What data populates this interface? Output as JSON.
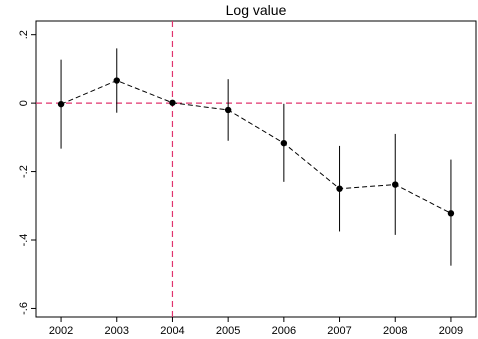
{
  "chart_data": {
    "type": "scatter",
    "title": "Log value",
    "xlabel": "",
    "ylabel": "",
    "x": [
      2002,
      2003,
      2004,
      2005,
      2006,
      2007,
      2008,
      2009
    ],
    "series": [
      {
        "values": [
          -0.003,
          0.066,
          0.001,
          -0.02,
          -0.117,
          -0.25,
          -0.238,
          -0.322
        ],
        "ci_low": [
          -0.133,
          -0.028,
          0.001,
          -0.11,
          -0.23,
          -0.375,
          -0.385,
          -0.475
        ],
        "ci_high": [
          0.127,
          0.16,
          0.001,
          0.07,
          -0.002,
          -0.125,
          -0.09,
          -0.165
        ],
        "marker_color": "#000000",
        "line_style": "dashed"
      }
    ],
    "xticks": [
      "2002",
      "2003",
      "2004",
      "2005",
      "2006",
      "2007",
      "2008",
      "2009"
    ],
    "yticks": [
      0.2,
      0,
      -0.2,
      -0.4,
      -0.6
    ],
    "ytick_labels": [
      ".2",
      "0",
      "-.2",
      "-.4",
      "-.6"
    ],
    "xlim": [
      2001.55,
      2009.45
    ],
    "ylim": [
      -0.625,
      0.24
    ],
    "reference_lines": {
      "horizontal": 0,
      "vertical": 2004,
      "color": "#e0336d",
      "style": "dashed"
    },
    "grid": false,
    "legend": "none"
  }
}
